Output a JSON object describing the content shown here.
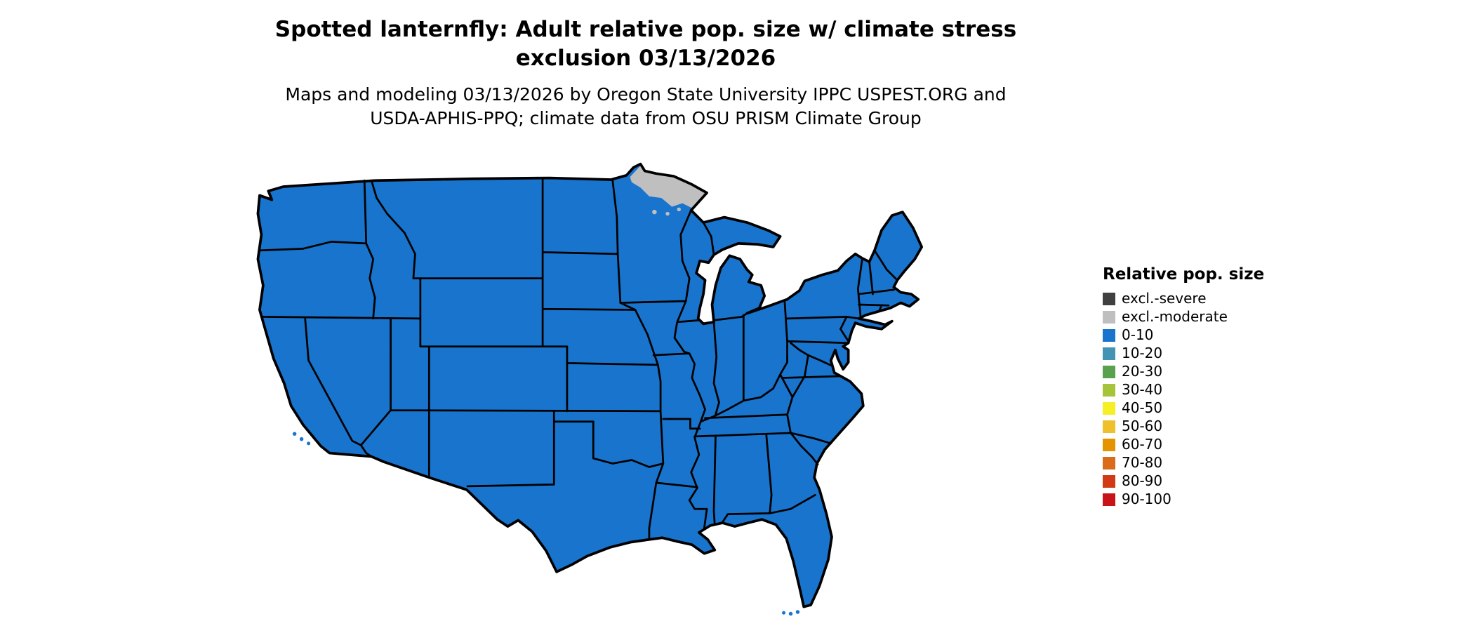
{
  "title": {
    "line1": "Spotted lanternfly: Adult relative pop. size w/ climate stress",
    "line2": "exclusion 03/13/2026"
  },
  "subtitle": {
    "line1": "Maps and modeling 03/13/2026 by Oregon State University IPPC USPEST.ORG and",
    "line2": "USDA-APHIS-PPQ; climate data from OSU PRISM Climate Group"
  },
  "legend": {
    "title": "Relative pop. size",
    "entries": [
      {
        "label": "excl.-severe",
        "color": "#404040"
      },
      {
        "label": "excl.-moderate",
        "color": "#bfbfbf"
      },
      {
        "label": "0-10",
        "color": "#1874cd"
      },
      {
        "label": "10-20",
        "color": "#4393b5"
      },
      {
        "label": "20-30",
        "color": "#59a14e"
      },
      {
        "label": "30-40",
        "color": "#a6c43a"
      },
      {
        "label": "40-50",
        "color": "#f5ef26"
      },
      {
        "label": "50-60",
        "color": "#eec12c"
      },
      {
        "label": "60-70",
        "color": "#e59400"
      },
      {
        "label": "70-80",
        "color": "#d96b1b"
      },
      {
        "label": "80-90",
        "color": "#d03a15"
      },
      {
        "label": "90-100",
        "color": "#c81418"
      }
    ]
  },
  "map": {
    "region": "Contiguous United States",
    "fill_class": "0-10",
    "fill": "#1874cd",
    "stroke": "#000000",
    "exclusion_moderate_color": "#bfbfbf",
    "exclusion_region": "northern Minnesota",
    "background": "#ffffff"
  }
}
